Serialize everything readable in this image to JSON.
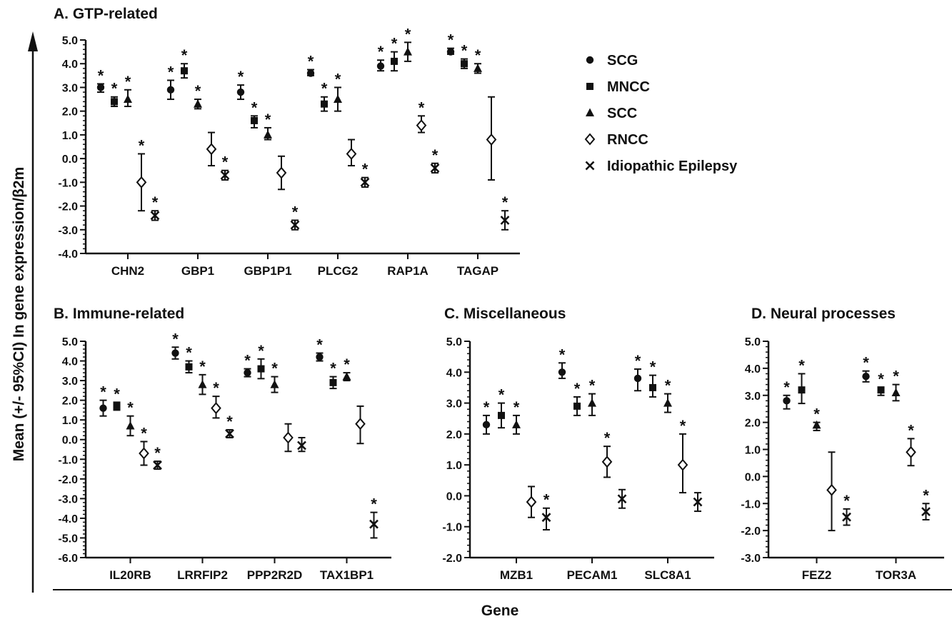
{
  "ylabel": "Mean (+/- 95%CI) In gene expression/β2m",
  "xlabel": "Gene",
  "legend": {
    "placement": "right of panel A",
    "entries": [
      {
        "key": "SCG",
        "label": "SCG",
        "marker": "circle"
      },
      {
        "key": "MNCC",
        "label": "MNCC",
        "marker": "square"
      },
      {
        "key": "SCC",
        "label": "SCC",
        "marker": "triangle"
      },
      {
        "key": "RNCC",
        "label": "RNCC",
        "marker": "diamond-open"
      },
      {
        "key": "IE",
        "label": "Idiopathic Epilepsy",
        "marker": "x"
      }
    ]
  },
  "chart_data": [
    {
      "type": "scatter",
      "title": "A. GTP-related",
      "ylim": [
        -4.0,
        5.0
      ],
      "ytick_step": 1.0,
      "categories": [
        "CHN2",
        "GBP1",
        "GBP1P1",
        "PLCG2",
        "RAP1A",
        "TAGAP"
      ],
      "series": [
        {
          "key": "SCG",
          "values": [
            3.0,
            2.9,
            2.8,
            3.6,
            3.9,
            4.5
          ],
          "lower": [
            2.8,
            2.5,
            2.5,
            3.5,
            3.7,
            4.4
          ],
          "upper": [
            3.15,
            3.3,
            3.1,
            3.75,
            4.15,
            4.65
          ],
          "sig": [
            true,
            true,
            true,
            true,
            true,
            true
          ]
        },
        {
          "key": "MNCC",
          "values": [
            2.4,
            3.7,
            1.6,
            2.3,
            4.1,
            4.0
          ],
          "lower": [
            2.2,
            3.4,
            1.3,
            2.0,
            3.7,
            3.8
          ],
          "upper": [
            2.6,
            4.0,
            1.8,
            2.6,
            4.5,
            4.2
          ],
          "sig": [
            true,
            true,
            true,
            true,
            true,
            true
          ]
        },
        {
          "key": "SCC",
          "values": [
            2.5,
            2.3,
            1.0,
            2.5,
            4.5,
            3.8
          ],
          "lower": [
            2.2,
            2.1,
            0.8,
            2.0,
            4.1,
            3.6
          ],
          "upper": [
            2.9,
            2.5,
            1.3,
            3.0,
            4.9,
            4.0
          ],
          "sig": [
            true,
            true,
            true,
            true,
            true,
            true
          ]
        },
        {
          "key": "RNCC",
          "values": [
            -1.0,
            0.4,
            -0.6,
            0.2,
            1.4,
            0.8
          ],
          "lower": [
            -2.2,
            -0.3,
            -1.3,
            -0.3,
            1.1,
            -0.9
          ],
          "upper": [
            0.2,
            1.1,
            0.1,
            0.8,
            1.8,
            2.6
          ],
          "sig": [
            true,
            false,
            false,
            false,
            true,
            false
          ]
        },
        {
          "key": "IE",
          "values": [
            -2.4,
            -0.7,
            -2.8,
            -1.0,
            -0.4,
            -2.6
          ],
          "lower": [
            -2.6,
            -0.9,
            -3.0,
            -1.2,
            -0.6,
            -3.0
          ],
          "upper": [
            -2.2,
            -0.5,
            -2.6,
            -0.8,
            -0.2,
            -2.2
          ],
          "sig": [
            true,
            true,
            true,
            true,
            true,
            true
          ]
        }
      ]
    },
    {
      "type": "scatter",
      "title": "B. Immune-related",
      "ylim": [
        -6.0,
        5.0
      ],
      "ytick_step": 1.0,
      "categories": [
        "IL20RB",
        "LRRFIP2",
        "PPP2R2D",
        "TAX1BP1"
      ],
      "series": [
        {
          "key": "SCG",
          "values": [
            1.6,
            4.4,
            3.4,
            4.2
          ],
          "lower": [
            1.2,
            4.1,
            3.2,
            4.0
          ],
          "upper": [
            2.0,
            4.7,
            3.6,
            4.4
          ],
          "sig": [
            true,
            true,
            true,
            true
          ]
        },
        {
          "key": "MNCC",
          "values": [
            1.7,
            3.7,
            3.6,
            2.9
          ],
          "lower": [
            1.5,
            3.4,
            3.1,
            2.6
          ],
          "upper": [
            1.9,
            4.0,
            4.1,
            3.2
          ],
          "sig": [
            true,
            true,
            true,
            true
          ]
        },
        {
          "key": "SCC",
          "values": [
            0.7,
            2.8,
            2.8,
            3.2
          ],
          "lower": [
            0.2,
            2.3,
            2.4,
            3.0
          ],
          "upper": [
            1.2,
            3.3,
            3.2,
            3.4
          ],
          "sig": [
            true,
            true,
            true,
            true
          ]
        },
        {
          "key": "RNCC",
          "values": [
            -0.7,
            1.6,
            0.1,
            0.8
          ],
          "lower": [
            -1.3,
            1.1,
            -0.6,
            -0.2
          ],
          "upper": [
            -0.1,
            2.2,
            0.8,
            1.7
          ],
          "sig": [
            true,
            true,
            false,
            false
          ]
        },
        {
          "key": "IE",
          "values": [
            -1.3,
            0.3,
            -0.3,
            -4.3
          ],
          "lower": [
            -1.5,
            0.1,
            -0.6,
            -5.0
          ],
          "upper": [
            -1.1,
            0.5,
            0.1,
            -3.7
          ],
          "sig": [
            true,
            true,
            false,
            true
          ]
        }
      ]
    },
    {
      "type": "scatter",
      "title": "C. Miscellaneous",
      "ylim": [
        -2.0,
        5.0
      ],
      "ytick_step": 1.0,
      "categories": [
        "MZB1",
        "PECAM1",
        "SLC8A1"
      ],
      "series": [
        {
          "key": "SCG",
          "values": [
            2.3,
            4.0,
            3.8
          ],
          "lower": [
            2.0,
            3.8,
            3.4
          ],
          "upper": [
            2.6,
            4.3,
            4.1
          ],
          "sig": [
            true,
            true,
            true
          ]
        },
        {
          "key": "MNCC",
          "values": [
            2.6,
            2.9,
            3.5
          ],
          "lower": [
            2.2,
            2.6,
            3.2
          ],
          "upper": [
            3.0,
            3.2,
            3.9
          ],
          "sig": [
            true,
            true,
            true
          ]
        },
        {
          "key": "SCC",
          "values": [
            2.3,
            3.0,
            3.0
          ],
          "lower": [
            2.0,
            2.6,
            2.7
          ],
          "upper": [
            2.6,
            3.3,
            3.3
          ],
          "sig": [
            true,
            true,
            true
          ]
        },
        {
          "key": "RNCC",
          "values": [
            -0.2,
            1.1,
            1.0
          ],
          "lower": [
            -0.7,
            0.6,
            0.1
          ],
          "upper": [
            0.3,
            1.6,
            2.0
          ],
          "sig": [
            false,
            true,
            true
          ]
        },
        {
          "key": "IE",
          "values": [
            -0.7,
            -0.1,
            -0.2
          ],
          "lower": [
            -1.1,
            -0.4,
            -0.5
          ],
          "upper": [
            -0.4,
            0.2,
            0.1
          ],
          "sig": [
            true,
            false,
            false
          ]
        }
      ]
    },
    {
      "type": "scatter",
      "title": "D. Neural processes",
      "ylim": [
        -3.0,
        5.0
      ],
      "ytick_step": 1.0,
      "categories": [
        "FEZ2",
        "TOR3A"
      ],
      "series": [
        {
          "key": "SCG",
          "values": [
            2.8,
            3.7
          ],
          "lower": [
            2.5,
            3.5
          ],
          "upper": [
            3.0,
            3.9
          ],
          "sig": [
            true,
            true
          ]
        },
        {
          "key": "MNCC",
          "values": [
            3.2,
            3.2
          ],
          "lower": [
            2.7,
            3.0
          ],
          "upper": [
            3.8,
            3.3
          ],
          "sig": [
            true,
            true
          ]
        },
        {
          "key": "SCC",
          "values": [
            1.9,
            3.1
          ],
          "lower": [
            1.7,
            2.8
          ],
          "upper": [
            2.0,
            3.4
          ],
          "sig": [
            true,
            true
          ]
        },
        {
          "key": "RNCC",
          "values": [
            -0.5,
            0.9
          ],
          "lower": [
            -2.0,
            0.4
          ],
          "upper": [
            0.9,
            1.4
          ],
          "sig": [
            false,
            true
          ]
        },
        {
          "key": "IE",
          "values": [
            -1.5,
            -1.3
          ],
          "lower": [
            -1.8,
            -1.6
          ],
          "upper": [
            -1.2,
            -1.0
          ],
          "sig": [
            true,
            true
          ]
        }
      ]
    }
  ]
}
